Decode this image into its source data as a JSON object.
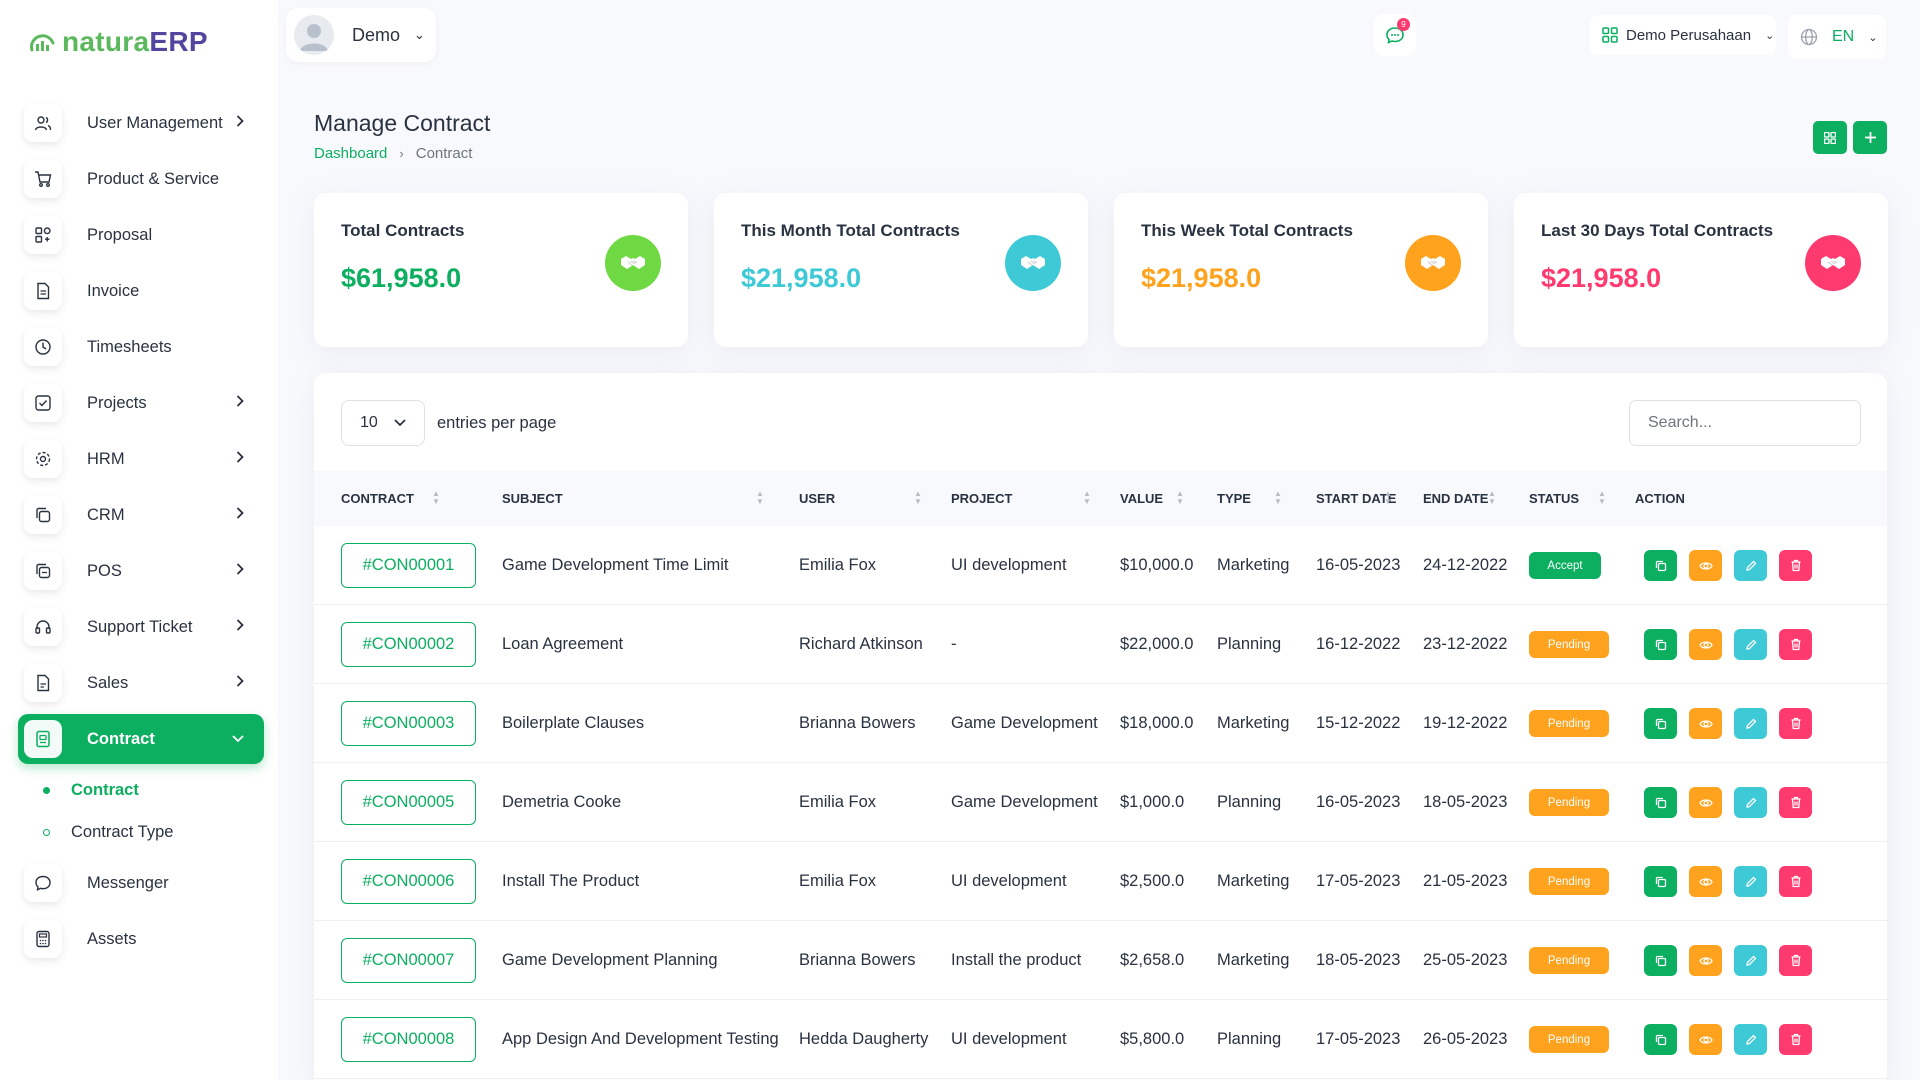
{
  "logo": {
    "part1": "natura",
    "part2": "ERP"
  },
  "topbar": {
    "user_name": "Demo",
    "notification_count": "9",
    "company": "Demo Perusahaan",
    "language": "EN"
  },
  "sidebar": {
    "items": [
      {
        "label": "User Management",
        "icon": "users-icon",
        "has_chevron": true
      },
      {
        "label": "Product & Service",
        "icon": "cart-icon",
        "has_chevron": false
      },
      {
        "label": "Proposal",
        "icon": "proposal-icon",
        "has_chevron": false
      },
      {
        "label": "Invoice",
        "icon": "file-invoice-icon",
        "has_chevron": false
      },
      {
        "label": "Timesheets",
        "icon": "clock-icon",
        "has_chevron": false
      },
      {
        "label": "Projects",
        "icon": "checkbox-icon",
        "has_chevron": true
      },
      {
        "label": "HRM",
        "icon": "hrm-icon",
        "has_chevron": true
      },
      {
        "label": "CRM",
        "icon": "copy-icon",
        "has_chevron": true
      },
      {
        "label": "POS",
        "icon": "pos-icon",
        "has_chevron": true
      },
      {
        "label": "Support Ticket",
        "icon": "headset-icon",
        "has_chevron": true
      },
      {
        "label": "Sales",
        "icon": "file-icon",
        "has_chevron": true
      },
      {
        "label": "Contract",
        "icon": "contract-icon",
        "has_chevron": true,
        "active": true
      }
    ],
    "sub_items": [
      {
        "label": "Contract",
        "active": true
      },
      {
        "label": "Contract Type",
        "active": false
      }
    ],
    "after_items": [
      {
        "label": "Messenger",
        "icon": "chat-icon"
      },
      {
        "label": "Assets",
        "icon": "calculator-icon"
      }
    ]
  },
  "page": {
    "title": "Manage Contract",
    "breadcrumb": {
      "link": "Dashboard",
      "current": "Contract"
    }
  },
  "stats": [
    {
      "title": "Total Contracts",
      "value": "$61,958.0",
      "color": "#0caf60",
      "icon_bg": "#6fd943"
    },
    {
      "title": "This Month Total Contracts",
      "value": "$21,958.0",
      "color": "#3ec9d6",
      "icon_bg": "#3ec9d6"
    },
    {
      "title": "This Week Total Contracts",
      "value": "$21,958.0",
      "color": "#ffa21d",
      "icon_bg": "#ffa21d"
    },
    {
      "title": "Last 30 Days Total Contracts",
      "value": "$21,958.0",
      "color": "#ff3a6e",
      "icon_bg": "#ff3a6e"
    }
  ],
  "table": {
    "entries_value": "10",
    "entries_label": "entries per page",
    "search_placeholder": "Search...",
    "columns": [
      "Contract",
      "Subject",
      "User",
      "Project",
      "Value",
      "Type",
      "Start Date",
      "End Date",
      "Status",
      "Action"
    ],
    "rows": [
      {
        "contract": "#CON00001",
        "subject": "Game Development Time Limit",
        "user": "Emilia Fox",
        "project": "UI development",
        "value": "$10,000.0",
        "type": "Marketing",
        "start": "16-05-2023",
        "end": "24-12-2022",
        "status": "Accept"
      },
      {
        "contract": "#CON00002",
        "subject": "Loan Agreement",
        "user": "Richard Atkinson",
        "project": "-",
        "value": "$22,000.0",
        "type": "Planning",
        "start": "16-12-2022",
        "end": "23-12-2022",
        "status": "Pending"
      },
      {
        "contract": "#CON00003",
        "subject": "Boilerplate Clauses",
        "user": "Brianna Bowers",
        "project": "Game Development",
        "value": "$18,000.0",
        "type": "Marketing",
        "start": "15-12-2022",
        "end": "19-12-2022",
        "status": "Pending"
      },
      {
        "contract": "#CON00005",
        "subject": "Demetria Cooke",
        "user": "Emilia Fox",
        "project": "Game Development",
        "value": "$1,000.0",
        "type": "Planning",
        "start": "16-05-2023",
        "end": "18-05-2023",
        "status": "Pending"
      },
      {
        "contract": "#CON00006",
        "subject": "Install The Product",
        "user": "Emilia Fox",
        "project": "UI development",
        "value": "$2,500.0",
        "type": "Marketing",
        "start": "17-05-2023",
        "end": "21-05-2023",
        "status": "Pending"
      },
      {
        "contract": "#CON00007",
        "subject": "Game Development Planning",
        "user": "Brianna Bowers",
        "project": "Install the product",
        "value": "$2,658.0",
        "type": "Marketing",
        "start": "18-05-2023",
        "end": "25-05-2023",
        "status": "Pending"
      },
      {
        "contract": "#CON00008",
        "subject": "App Design And Development Testing",
        "user": "Hedda Daugherty",
        "project": "UI development",
        "value": "$5,800.0",
        "type": "Planning",
        "start": "17-05-2023",
        "end": "26-05-2023",
        "status": "Pending"
      }
    ],
    "action_colors": {
      "copy": "#0caf60",
      "view": "#ffa21d",
      "edit": "#3ec9d6",
      "delete": "#ff3a6e"
    }
  }
}
